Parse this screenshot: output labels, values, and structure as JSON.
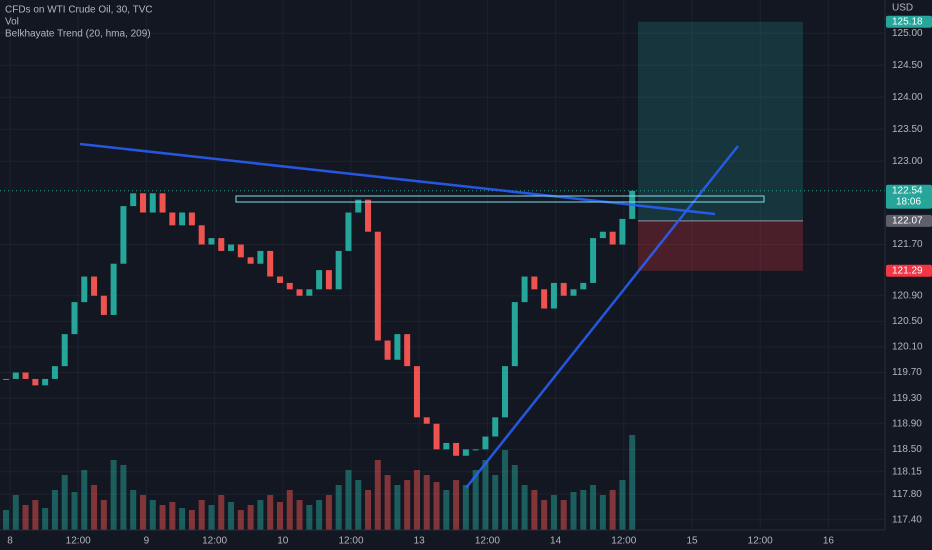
{
  "chart_data": {
    "type": "candlestick",
    "title": "CFDs on WTI Crude Oil, 30, TVC",
    "indicators": [
      "Vol",
      "Belkhayate Trend (20, hma, 209)"
    ],
    "currency": "USD",
    "closes": [
      119.6,
      119.7,
      119.6,
      119.5,
      119.6,
      119.8,
      120.3,
      120.8,
      121.2,
      120.9,
      120.6,
      121.4,
      122.3,
      122.5,
      122.2,
      122.5,
      122.2,
      122.0,
      122.2,
      122.0,
      121.7,
      121.8,
      121.6,
      121.7,
      121.5,
      121.4,
      121.6,
      121.2,
      121.1,
      121.0,
      120.9,
      121.0,
      121.3,
      121.0,
      121.6,
      122.2,
      122.4,
      121.9,
      120.2,
      119.9,
      120.3,
      119.8,
      119.0,
      118.9,
      118.5,
      118.6,
      118.4,
      118.5,
      118.5,
      118.7,
      119.0,
      119.8,
      120.8,
      121.2,
      121.0,
      120.7,
      121.1,
      120.9,
      121.0,
      121.1,
      121.8,
      121.9,
      121.7,
      122.1,
      122.54
    ],
    "volumes": [
      20,
      35,
      25,
      30,
      22,
      40,
      55,
      38,
      60,
      45,
      30,
      70,
      65,
      40,
      35,
      30,
      25,
      28,
      22,
      20,
      30,
      25,
      35,
      28,
      20,
      25,
      30,
      35,
      28,
      40,
      30,
      25,
      30,
      35,
      45,
      60,
      50,
      40,
      70,
      55,
      45,
      50,
      60,
      55,
      48,
      40,
      50,
      45,
      60,
      70,
      55,
      80,
      65,
      45,
      40,
      30,
      35,
      30,
      38,
      40,
      45,
      35,
      40,
      50,
      95
    ],
    "ylim": [
      117.24,
      125.52
    ],
    "yticks": [
      {
        "value": 125,
        "label": "125.00"
      },
      {
        "value": 124.5,
        "label": "124.50"
      },
      {
        "value": 124,
        "label": "124.00"
      },
      {
        "value": 123.5,
        "label": "123.50"
      },
      {
        "value": 123,
        "label": "123.00"
      },
      {
        "value": 121.7,
        "label": "121.70"
      },
      {
        "value": 120.9,
        "label": "120.90"
      },
      {
        "value": 120.5,
        "label": "120.50"
      },
      {
        "value": 120.1,
        "label": "120.10"
      },
      {
        "value": 119.7,
        "label": "119.70"
      },
      {
        "value": 119.3,
        "label": "119.30"
      },
      {
        "value": 118.9,
        "label": "118.90"
      },
      {
        "value": 118.5,
        "label": "118.50"
      },
      {
        "value": 118.15,
        "label": "118.15"
      },
      {
        "value": 117.8,
        "label": "117.80"
      },
      {
        "value": 117.4,
        "label": "117.40"
      }
    ],
    "xticks": [
      "8",
      "12:00",
      "9",
      "12:00",
      "10",
      "12:00",
      "13",
      "12:00",
      "14",
      "12:00",
      "15",
      "12:00",
      "16"
    ],
    "tags": [
      {
        "value": 125.18,
        "label": "125.18",
        "color": "#26a69a"
      },
      {
        "value": 122.54,
        "label": "122.54",
        "color": "#26a69a"
      },
      {
        "value": 122.07,
        "label": "122.07",
        "color": "#5d606b"
      },
      {
        "value": 121.29,
        "label": "121.29",
        "color": "#f23645"
      }
    ],
    "countdown": "18:06",
    "up_color": "#26a69a",
    "down_color": "#ef5350"
  }
}
